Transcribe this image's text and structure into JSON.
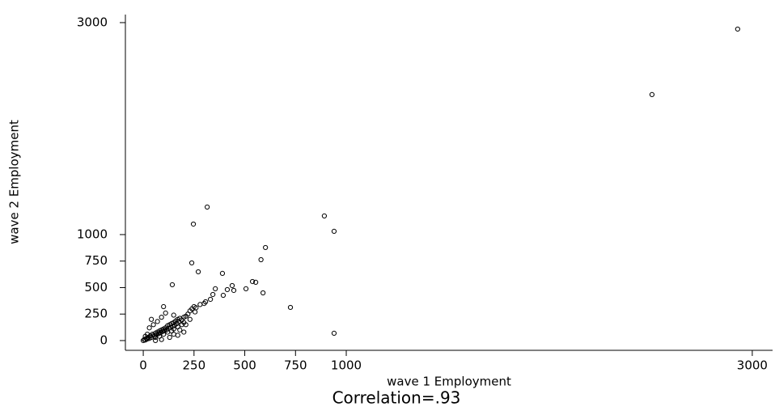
{
  "chart_data": {
    "type": "scatter",
    "x_label": "wave 1 Employment",
    "y_label": "wave 2 Employment",
    "annotation": "Correlation=.93",
    "color": "#000000",
    "xlim": [
      -88,
      3100
    ],
    "ylim": [
      -92,
      3076
    ],
    "xticks": [
      0,
      250,
      500,
      750,
      1000,
      3000
    ],
    "yticks": [
      0,
      250,
      500,
      750,
      1000,
      3000
    ],
    "x": [
      2928,
      2506,
      315,
      247,
      892,
      940,
      602,
      580,
      239,
      271,
      390,
      143,
      590,
      725,
      940,
      355,
      438,
      414,
      506,
      538,
      554,
      343,
      394,
      446,
      307,
      331,
      0,
      5,
      10,
      15,
      20,
      25,
      30,
      10,
      35,
      40,
      45,
      50,
      55,
      60,
      65,
      70,
      75,
      80,
      85,
      90,
      95,
      100,
      105,
      110,
      115,
      120,
      125,
      130,
      135,
      140,
      145,
      150,
      155,
      160,
      165,
      170,
      175,
      180,
      190,
      200,
      210,
      220,
      60,
      80,
      100,
      120,
      140,
      150,
      170,
      190,
      200,
      230,
      240,
      250,
      30,
      50,
      70,
      90,
      110,
      130,
      150,
      180,
      200,
      170,
      260,
      280,
      300,
      210,
      230,
      40,
      100,
      150,
      60,
      90,
      20,
      255
    ],
    "values": [
      2939,
      2321,
      1260,
      1099,
      1176,
      1031,
      878,
      763,
      733,
      649,
      634,
      527,
      450,
      313,
      69,
      489,
      519,
      481,
      489,
      557,
      550,
      435,
      427,
      473,
      366,
      389,
      0,
      10,
      5,
      20,
      15,
      30,
      20,
      40,
      45,
      30,
      60,
      50,
      40,
      70,
      55,
      80,
      65,
      90,
      75,
      100,
      85,
      110,
      95,
      120,
      100,
      140,
      115,
      150,
      125,
      160,
      135,
      170,
      145,
      185,
      160,
      200,
      180,
      210,
      195,
      220,
      230,
      250,
      30,
      40,
      60,
      80,
      90,
      110,
      130,
      150,
      170,
      280,
      300,
      320,
      120,
      150,
      180,
      220,
      260,
      30,
      60,
      100,
      80,
      50,
      310,
      340,
      350,
      150,
      200,
      200,
      320,
      240,
      0,
      10,
      60,
      270
    ]
  }
}
